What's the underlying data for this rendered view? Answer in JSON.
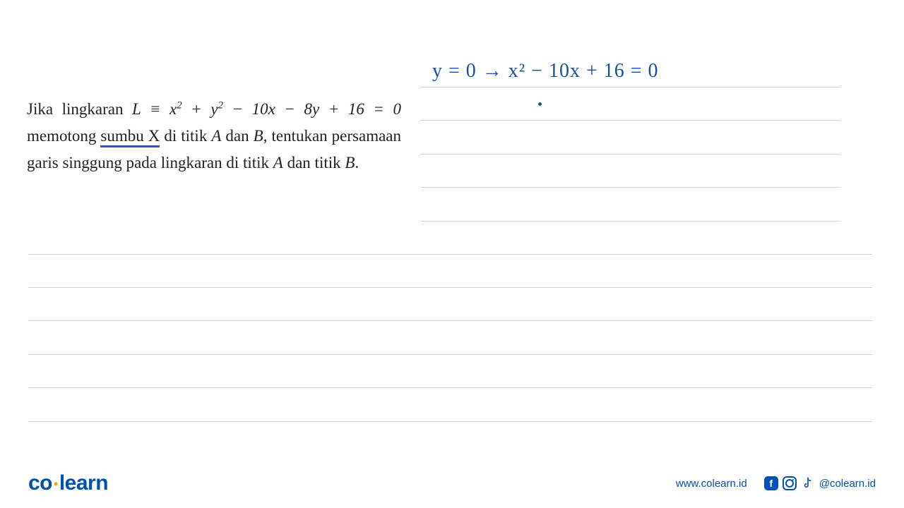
{
  "problem": {
    "line1_prefix": "Jika lingkaran ",
    "equation": "L ≡ x² + y² − 10x − 8y + 16 = 0",
    "line2_pre": "memotong ",
    "line2_underlined": "sumbu  X",
    "line2_post": " di titik ",
    "line2_A": "A",
    "line2_and": " dan ",
    "line2_B": "B",
    "line2_comma": ",",
    "line3": "tentukan persamaan garis singgung pada",
    "line4_pre": "lingkaran di titik ",
    "line4_A": "A",
    "line4_mid": " dan titik ",
    "line4_B": "B",
    "line4_dot": "."
  },
  "handwriting": {
    "text": "y = 0  →  x² − 10x + 16 = 0"
  },
  "ruled_lines": {
    "right_side_tops": [
      123,
      170,
      218,
      265,
      313
    ],
    "full_width_tops": [
      360,
      407,
      454,
      502,
      549,
      597
    ],
    "color": "#d4d4d4"
  },
  "footer": {
    "logo_co": "co",
    "logo_learn": "learn",
    "website": "www.colearn.id",
    "handle": "@colearn.id"
  },
  "colors": {
    "text": "#222222",
    "brand_blue": "#0050b3",
    "handwriting_blue": "#1a4e9e",
    "underline_blue": "#2a5db0",
    "logo_dot": "#ffa500"
  }
}
